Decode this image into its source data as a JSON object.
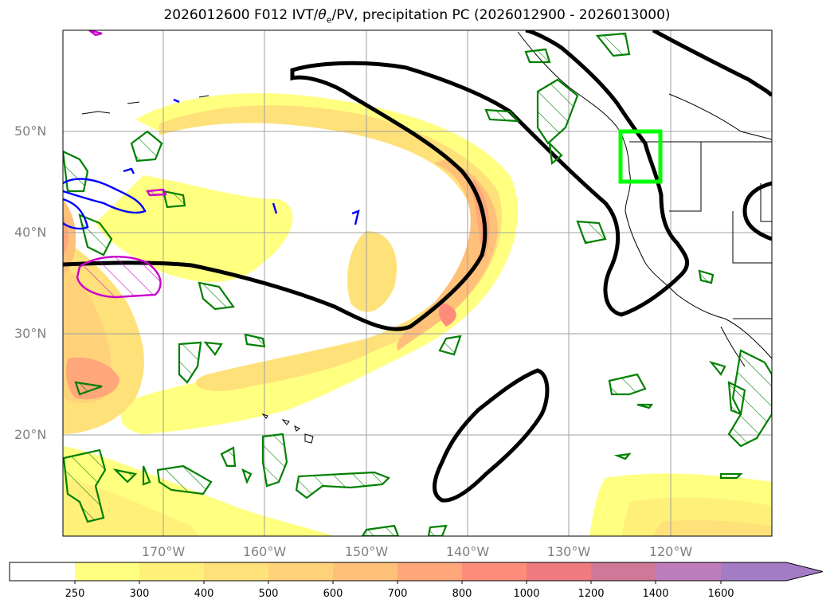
{
  "title_prefix": "2026012600 F012 IVT/",
  "title_theta": "θ",
  "title_sub": "e",
  "title_suffix": "/PV, precipitation PC (2026012900 - 2026013000)",
  "lat_labels": [
    "50°N",
    "40°N",
    "30°N",
    "20°N"
  ],
  "lon_labels": [
    "170°W",
    "160°W",
    "150°W",
    "140°W",
    "130°W",
    "120°W"
  ],
  "colorbar": {
    "levels": [
      "250",
      "300",
      "400",
      "500",
      "600",
      "700",
      "800",
      "1000",
      "1200",
      "1400",
      "1600"
    ],
    "colors": [
      "#ffffff",
      "#ffff80",
      "#fff07a",
      "#ffe17a",
      "#ffd27a",
      "#ffc07a",
      "#ffa67a",
      "#ff8c7a",
      "#ef7a80",
      "#d07898",
      "#bd7cba",
      "#a47cc6"
    ]
  },
  "colors": {
    "ivt_contour": "#000000",
    "precip_hatch": "#008000",
    "pv_blue": "#0000ff",
    "pv_magenta": "#cc00cc",
    "target_box": "#00ff00"
  }
}
